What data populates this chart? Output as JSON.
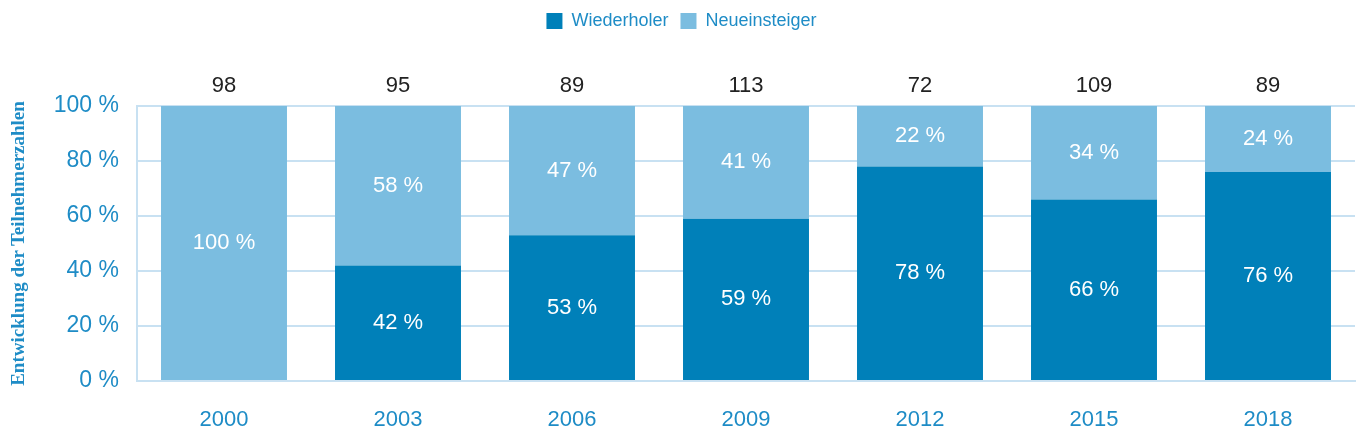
{
  "chart_data": {
    "type": "bar",
    "stacked": true,
    "categories": [
      "2000",
      "2003",
      "2006",
      "2009",
      "2012",
      "2015",
      "2018"
    ],
    "series": [
      {
        "name": "Wiederholer",
        "color": "#0080b9",
        "values": [
          0,
          42,
          53,
          59,
          78,
          66,
          76
        ],
        "value_labels": [
          null,
          "42 %",
          "53 %",
          "59 %",
          "78 %",
          "66 %",
          "76 %"
        ]
      },
      {
        "name": "Neueinsteiger",
        "color": "#7bbde0",
        "values": [
          100,
          58,
          47,
          41,
          22,
          34,
          24
        ],
        "value_labels": [
          "100 %",
          "58 %",
          "47 %",
          "41 %",
          "22 %",
          "34 %",
          "24 %"
        ]
      }
    ],
    "annotations": [
      {
        "text": "98",
        "x": "2000",
        "y": 100
      },
      {
        "text": "95",
        "x": "2003",
        "y": 100
      },
      {
        "text": "89",
        "x": "2006",
        "y": 100
      },
      {
        "text": "113",
        "x": "2009",
        "y": 100
      },
      {
        "text": "72",
        "x": "2012",
        "y": 100
      },
      {
        "text": "109",
        "x": "2015",
        "y": 100
      },
      {
        "text": "89",
        "x": "2018",
        "y": 100
      }
    ],
    "ylabel": "Entwicklung der Teilnehmerzahlen",
    "ylim": [
      0,
      100
    ],
    "yticks": [
      {
        "value": 0,
        "label": "0 %"
      },
      {
        "value": 20,
        "label": "20 %"
      },
      {
        "value": 40,
        "label": "40 %"
      },
      {
        "value": 60,
        "label": "60 %"
      },
      {
        "value": 80,
        "label": "80 %"
      },
      {
        "value": 100,
        "label": "100 %"
      }
    ],
    "grid": "y",
    "legend": "top"
  }
}
